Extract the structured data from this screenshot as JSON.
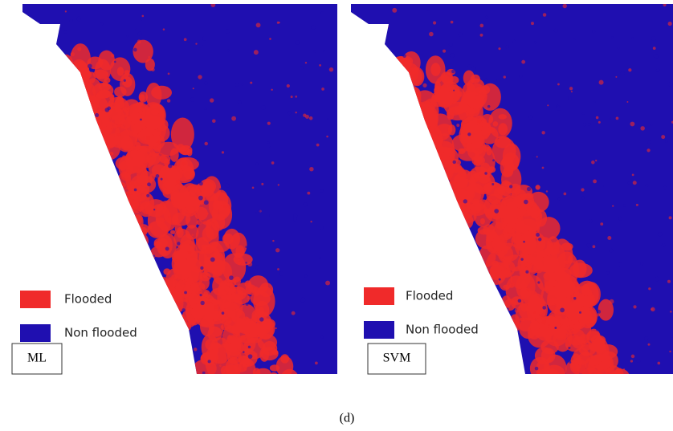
{
  "panels": [
    {
      "label": "ML",
      "legend": [
        {
          "label": "Flooded",
          "color": "#f02a2a"
        },
        {
          "label": "Non flooded",
          "color": "#1f0fb0"
        }
      ]
    },
    {
      "label": "SVM",
      "legend": [
        {
          "label": "Flooded",
          "color": "#f02a2a"
        },
        {
          "label": "Non flooded",
          "color": "#1f0fb0"
        }
      ]
    }
  ],
  "caption": "(d)"
}
